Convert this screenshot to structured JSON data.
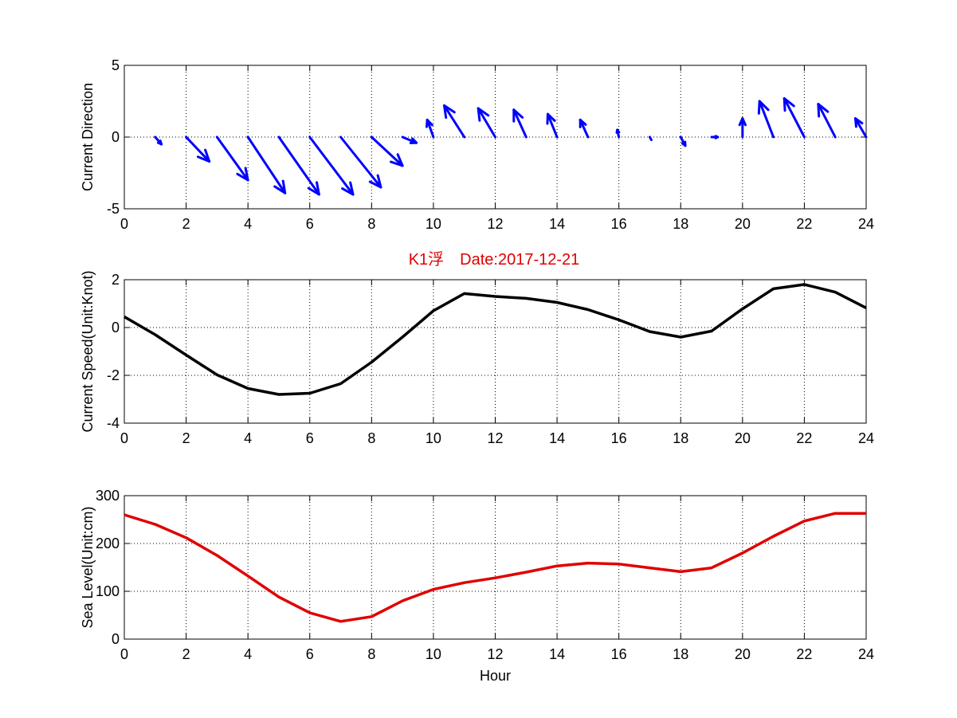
{
  "figure_title": "K1浮　Date:2017-12-21",
  "chart_data": [
    {
      "type": "quiver",
      "ylabel": "Current Direction",
      "xlim": [
        0,
        24
      ],
      "ylim": [
        -5,
        5
      ],
      "grid": true,
      "xticks": [
        "0",
        "2",
        "4",
        "6",
        "8",
        "10",
        "12",
        "14",
        "16",
        "18",
        "20",
        "22",
        "24"
      ],
      "yticks": [
        "-5",
        "0",
        "5"
      ],
      "color": "#0000ff",
      "vectors": [
        {
          "x": 1,
          "u": 0.2,
          "v": -0.5
        },
        {
          "x": 2,
          "u": 0.75,
          "v": -1.7
        },
        {
          "x": 3,
          "u": 1.0,
          "v": -3.0
        },
        {
          "x": 4,
          "u": 1.2,
          "v": -3.9
        },
        {
          "x": 5,
          "u": 1.3,
          "v": -4.0
        },
        {
          "x": 6,
          "u": 1.4,
          "v": -4.0
        },
        {
          "x": 7,
          "u": 1.3,
          "v": -3.5
        },
        {
          "x": 8,
          "u": 1.0,
          "v": -2.0
        },
        {
          "x": 9,
          "u": 0.45,
          "v": -0.4
        },
        {
          "x": 10,
          "u": -0.2,
          "v": 1.2
        },
        {
          "x": 11,
          "u": -0.65,
          "v": 2.2
        },
        {
          "x": 12,
          "u": -0.55,
          "v": 2.0
        },
        {
          "x": 13,
          "u": -0.4,
          "v": 1.9
        },
        {
          "x": 14,
          "u": -0.3,
          "v": 1.6
        },
        {
          "x": 15,
          "u": -0.25,
          "v": 1.2
        },
        {
          "x": 16,
          "u": -0.05,
          "v": 0.5
        },
        {
          "x": 17,
          "u": 0.05,
          "v": -0.2
        },
        {
          "x": 18,
          "u": 0.15,
          "v": -0.6
        },
        {
          "x": 19,
          "u": 0.2,
          "v": 0.0
        },
        {
          "x": 20,
          "u": 0.0,
          "v": 1.3
        },
        {
          "x": 21,
          "u": -0.45,
          "v": 2.5
        },
        {
          "x": 22,
          "u": -0.65,
          "v": 2.7
        },
        {
          "x": 23,
          "u": -0.55,
          "v": 2.3
        },
        {
          "x": 24,
          "u": -0.35,
          "v": 1.3
        }
      ]
    },
    {
      "type": "line",
      "ylabel": "Current Speed(Unit:Knot)",
      "xlim": [
        0,
        24
      ],
      "ylim": [
        -4,
        2
      ],
      "grid": true,
      "xticks": [
        "0",
        "2",
        "4",
        "6",
        "8",
        "10",
        "12",
        "14",
        "16",
        "18",
        "20",
        "22",
        "24"
      ],
      "yticks": [
        "-4",
        "-2",
        "0",
        "2"
      ],
      "color": "#000000",
      "x": [
        0,
        1,
        2,
        3,
        4,
        5,
        6,
        7,
        8,
        9,
        10,
        11,
        12,
        13,
        14,
        15,
        16,
        17,
        18,
        19,
        20,
        21,
        22,
        23,
        24
      ],
      "values": [
        0.45,
        -0.3,
        -1.15,
        -1.98,
        -2.55,
        -2.8,
        -2.75,
        -2.35,
        -1.45,
        -0.4,
        0.7,
        1.42,
        1.3,
        1.22,
        1.05,
        0.75,
        0.32,
        -0.17,
        -0.4,
        -0.15,
        0.78,
        1.62,
        1.8,
        1.48,
        0.82
      ]
    },
    {
      "type": "line",
      "ylabel": "Sea Level(Unit:cm)",
      "xlabel": "Hour",
      "xlim": [
        0,
        24
      ],
      "ylim": [
        0,
        300
      ],
      "grid": true,
      "xticks": [
        "0",
        "2",
        "4",
        "6",
        "8",
        "10",
        "12",
        "14",
        "16",
        "18",
        "20",
        "22",
        "24"
      ],
      "yticks": [
        "0",
        "100",
        "200",
        "300"
      ],
      "color": "#e00000",
      "x": [
        0,
        1,
        2,
        3,
        4,
        5,
        6,
        7,
        8,
        9,
        10,
        11,
        12,
        13,
        14,
        15,
        16,
        17,
        18,
        19,
        20,
        21,
        22,
        23,
        24
      ],
      "values": [
        260,
        240,
        212,
        175,
        132,
        88,
        55,
        37,
        47,
        80,
        104,
        118,
        128,
        140,
        153,
        159,
        157,
        149,
        141,
        149,
        180,
        215,
        247,
        263,
        263
      ]
    }
  ]
}
